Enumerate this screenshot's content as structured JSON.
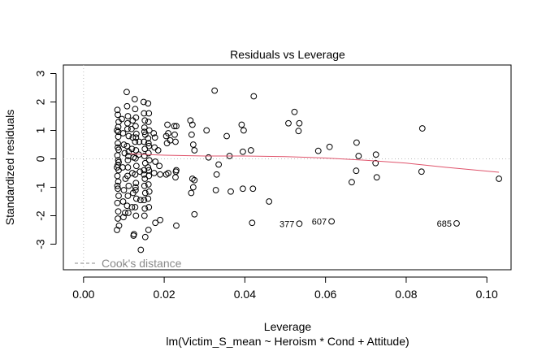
{
  "chart_data": {
    "type": "scatter",
    "title": "Residuals vs Leverage",
    "xlabel": "Leverage",
    "subtitle": "lm(Victim_S_mean ~ Heroism * Cond + Attitude)",
    "ylabel": "Standardized residuals",
    "xlim": [
      -0.005,
      0.106
    ],
    "ylim": [
      -3.9,
      3.3
    ],
    "x_ticks": [
      0.0,
      0.02,
      0.04,
      0.06,
      0.08,
      0.1
    ],
    "x_tick_labels": [
      "0.00",
      "0.02",
      "0.04",
      "0.06",
      "0.08",
      "0.10"
    ],
    "y_ticks": [
      -3,
      -2,
      -1,
      0,
      1,
      2,
      3
    ],
    "y_tick_labels": [
      "-3",
      "-2",
      "-1",
      "0",
      "1",
      "2",
      "3"
    ],
    "legend": {
      "label": "Cook's distance",
      "position": "bottom-left"
    },
    "colors": {
      "points": "#000000",
      "smooth": "#df536b",
      "reference": "#bebebe"
    },
    "smooth_line": {
      "x": [
        0.0115,
        0.016,
        0.02,
        0.03,
        0.04,
        0.05,
        0.06,
        0.07,
        0.08,
        0.09,
        0.103
      ],
      "y": [
        0.18,
        0.15,
        0.13,
        0.1,
        0.1,
        0.08,
        0.03,
        -0.05,
        -0.15,
        -0.3,
        -0.47
      ]
    },
    "labeled_points": [
      {
        "label": "377",
        "x": 0.0535,
        "y": -2.28
      },
      {
        "label": "607",
        "x": 0.0615,
        "y": -2.2
      },
      {
        "label": "685",
        "x": 0.0925,
        "y": -2.27
      }
    ],
    "points": [
      [
        0.0084,
        1.72
      ],
      [
        0.0085,
        1.55
      ],
      [
        0.0087,
        1.3
      ],
      [
        0.0083,
        1.0
      ],
      [
        0.0086,
        0.78
      ],
      [
        0.0085,
        0.55
      ],
      [
        0.0087,
        0.32
      ],
      [
        0.0084,
        0.12
      ],
      [
        0.0086,
        -0.05
      ],
      [
        0.0085,
        -0.22
      ],
      [
        0.0087,
        -0.4
      ],
      [
        0.0084,
        -0.6
      ],
      [
        0.0086,
        -0.8
      ],
      [
        0.0085,
        -1.05
      ],
      [
        0.0087,
        -1.3
      ],
      [
        0.0084,
        -1.55
      ],
      [
        0.0086,
        -1.85
      ],
      [
        0.0085,
        -2.1
      ],
      [
        0.0083,
        -2.5
      ],
      [
        0.0086,
        0.95
      ],
      [
        0.0085,
        0.4
      ],
      [
        0.0087,
        -0.12
      ],
      [
        0.0084,
        -0.95
      ],
      [
        0.0086,
        1.12
      ],
      [
        0.0083,
        -0.3
      ],
      [
        0.0088,
        -2.35
      ],
      [
        0.0095,
        1.4
      ],
      [
        0.0098,
        0.9
      ],
      [
        0.01,
        0.5
      ],
      [
        0.0102,
        0.2
      ],
      [
        0.0097,
        -0.3
      ],
      [
        0.0104,
        -0.7
      ],
      [
        0.01,
        -1.1
      ],
      [
        0.0098,
        -1.5
      ],
      [
        0.0103,
        -1.9
      ],
      [
        0.0099,
        -2.05
      ],
      [
        0.0107,
        2.35
      ],
      [
        0.0108,
        1.85
      ],
      [
        0.011,
        1.5
      ],
      [
        0.0109,
        1.05
      ],
      [
        0.0112,
        0.8
      ],
      [
        0.0108,
        0.45
      ],
      [
        0.0111,
        0.1
      ],
      [
        0.011,
        -0.3
      ],
      [
        0.0109,
        -0.6
      ],
      [
        0.0112,
        -0.95
      ],
      [
        0.011,
        -1.3
      ],
      [
        0.0108,
        -1.65
      ],
      [
        0.0111,
        -1.9
      ],
      [
        0.0109,
        1.25
      ],
      [
        0.011,
        -0.05
      ],
      [
        0.0112,
        0.25
      ],
      [
        0.0119,
        1.05
      ],
      [
        0.0122,
        0.75
      ],
      [
        0.012,
        0.35
      ],
      [
        0.0124,
        0.05
      ],
      [
        0.0121,
        -0.5
      ],
      [
        0.0123,
        -1.2
      ],
      [
        0.012,
        -1.7
      ],
      [
        0.0125,
        -2.65
      ],
      [
        0.0124,
        -2.7
      ],
      [
        0.0122,
        1.35
      ],
      [
        0.0127,
        2.1
      ],
      [
        0.0128,
        1.75
      ],
      [
        0.013,
        1.45
      ],
      [
        0.0129,
        1.15
      ],
      [
        0.0131,
        0.88
      ],
      [
        0.0128,
        0.6
      ],
      [
        0.013,
        0.3
      ],
      [
        0.0129,
        0.02
      ],
      [
        0.0131,
        -0.25
      ],
      [
        0.0128,
        -0.55
      ],
      [
        0.013,
        -0.85
      ],
      [
        0.0129,
        -1.1
      ],
      [
        0.0131,
        -1.4
      ],
      [
        0.0128,
        -1.7
      ],
      [
        0.013,
        -2.0
      ],
      [
        0.0129,
        -1.0
      ],
      [
        0.013,
        0.75
      ],
      [
        0.0137,
        0.15
      ],
      [
        0.014,
        -0.45
      ],
      [
        0.0142,
        -3.2
      ],
      [
        0.0138,
        0.6
      ],
      [
        0.0141,
        -1.45
      ],
      [
        0.0149,
        2.0
      ],
      [
        0.015,
        1.6
      ],
      [
        0.0152,
        1.35
      ],
      [
        0.0151,
        1.1
      ],
      [
        0.0153,
        0.85
      ],
      [
        0.015,
        0.6
      ],
      [
        0.0152,
        0.35
      ],
      [
        0.0151,
        0.1
      ],
      [
        0.0153,
        -0.15
      ],
      [
        0.015,
        -0.4
      ],
      [
        0.0152,
        -0.7
      ],
      [
        0.0151,
        -0.95
      ],
      [
        0.0153,
        -1.2
      ],
      [
        0.015,
        -1.45
      ],
      [
        0.0152,
        -1.75
      ],
      [
        0.0151,
        -2.0
      ],
      [
        0.0153,
        -2.75
      ],
      [
        0.015,
        -0.55
      ],
      [
        0.0151,
        0.95
      ],
      [
        0.016,
        1.95
      ],
      [
        0.0162,
        1.6
      ],
      [
        0.0161,
        1.3
      ],
      [
        0.0163,
        1.0
      ],
      [
        0.016,
        0.72
      ],
      [
        0.0162,
        0.45
      ],
      [
        0.0161,
        0.2
      ],
      [
        0.0163,
        -0.05
      ],
      [
        0.016,
        -0.3
      ],
      [
        0.0162,
        -0.6
      ],
      [
        0.0161,
        -0.9
      ],
      [
        0.0163,
        -1.15
      ],
      [
        0.016,
        -1.4
      ],
      [
        0.0162,
        -1.7
      ],
      [
        0.0161,
        -2.5
      ],
      [
        0.0162,
        -0.4
      ],
      [
        0.0161,
        0.55
      ],
      [
        0.0174,
        0.9
      ],
      [
        0.0176,
        0.4
      ],
      [
        0.0178,
        -0.1
      ],
      [
        0.0175,
        -0.5
      ],
      [
        0.0178,
        -2.25
      ],
      [
        0.0177,
        0.75
      ],
      [
        0.0185,
        0.3
      ],
      [
        0.019,
        -0.55
      ],
      [
        0.019,
        -2.15
      ],
      [
        0.0188,
        -0.25
      ],
      [
        0.0205,
        0.8
      ],
      [
        0.0208,
        1.2
      ],
      [
        0.021,
        0.9
      ],
      [
        0.0215,
        0.65
      ],
      [
        0.021,
        -0.5
      ],
      [
        0.0205,
        -0.55
      ],
      [
        0.0207,
        0.55
      ],
      [
        0.0225,
        1.15
      ],
      [
        0.023,
        1.15
      ],
      [
        0.0226,
        0.85
      ],
      [
        0.0228,
        0.6
      ],
      [
        0.023,
        -0.4
      ],
      [
        0.0229,
        -0.45
      ],
      [
        0.0228,
        -0.65
      ],
      [
        0.023,
        -2.35
      ],
      [
        0.0265,
        1.35
      ],
      [
        0.027,
        1.2
      ],
      [
        0.0268,
        0.85
      ],
      [
        0.0272,
        0.5
      ],
      [
        0.027,
        -0.7
      ],
      [
        0.0275,
        -0.75
      ],
      [
        0.0267,
        -1.2
      ],
      [
        0.0272,
        -1.0
      ],
      [
        0.0275,
        -1.95
      ],
      [
        0.0275,
        0.3
      ],
      [
        0.0325,
        2.4
      ],
      [
        0.0305,
        1.0
      ],
      [
        0.0328,
        -1.1
      ],
      [
        0.033,
        -0.55
      ],
      [
        0.031,
        0.05
      ],
      [
        0.0335,
        -0.2
      ],
      [
        0.0355,
        0.8
      ],
      [
        0.0362,
        0.1
      ],
      [
        0.0365,
        -1.15
      ],
      [
        0.0392,
        1.2
      ],
      [
        0.0397,
        1.0
      ],
      [
        0.0395,
        0.25
      ],
      [
        0.0395,
        -1.05
      ],
      [
        0.0415,
        0.3
      ],
      [
        0.0422,
        2.2
      ],
      [
        0.042,
        -1.05
      ],
      [
        0.0418,
        -2.25
      ],
      [
        0.046,
        -1.5
      ],
      [
        0.0508,
        1.25
      ],
      [
        0.0523,
        1.65
      ],
      [
        0.0535,
        1.25
      ],
      [
        0.0533,
        0.98
      ],
      [
        0.0535,
        -2.28
      ],
      [
        0.0582,
        0.28
      ],
      [
        0.061,
        0.42
      ],
      [
        0.0615,
        -2.2
      ],
      [
        0.0665,
        -0.82
      ],
      [
        0.0677,
        0.57
      ],
      [
        0.0682,
        0.1
      ],
      [
        0.0676,
        -0.42
      ],
      [
        0.0725,
        0.15
      ],
      [
        0.0724,
        -0.15
      ],
      [
        0.0727,
        -0.65
      ],
      [
        0.084,
        1.07
      ],
      [
        0.0838,
        -0.45
      ],
      [
        0.0925,
        -2.27
      ],
      [
        0.103,
        -0.7
      ]
    ]
  }
}
